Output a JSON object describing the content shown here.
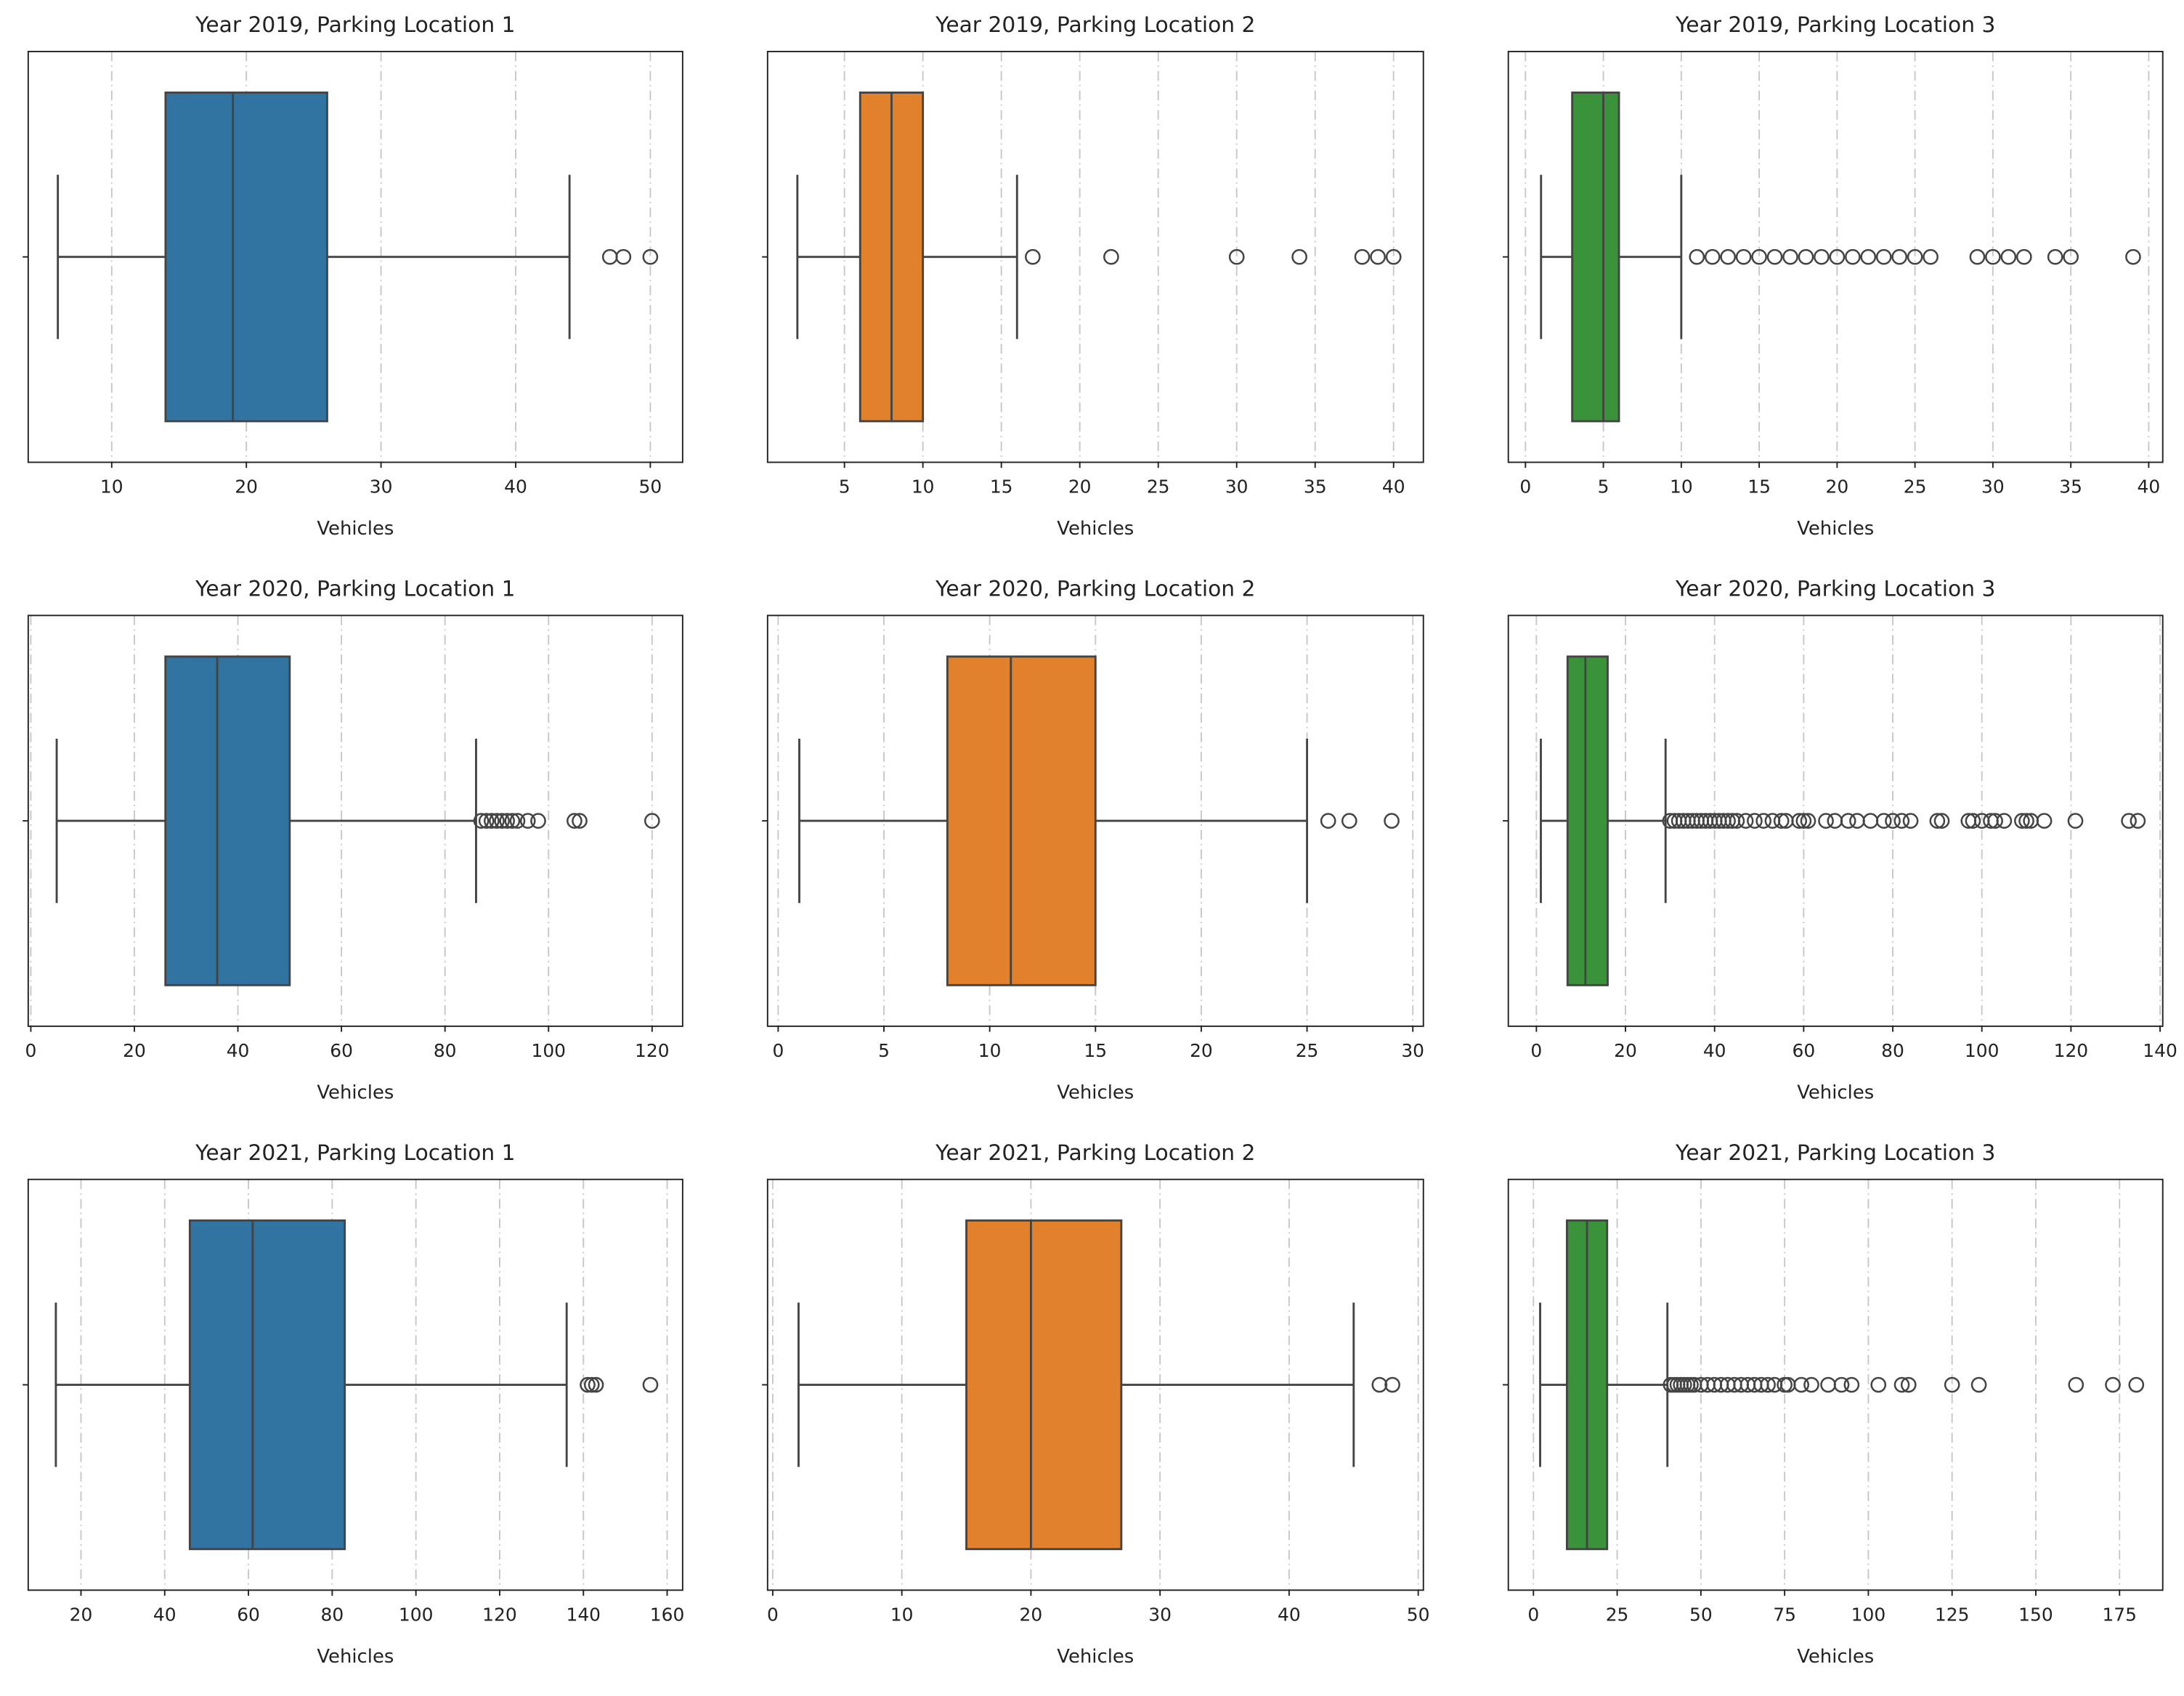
{
  "chart_data": [
    {
      "type": "box",
      "title": "Year 2019, Parking Location 1",
      "xlabel": "Vehicles",
      "color": "#3274a1",
      "grid": true,
      "whislo": 6,
      "q1": 14,
      "median": 19,
      "q3": 26,
      "whishi": 44,
      "fliers": [
        47,
        48,
        50
      ],
      "xlim": [
        3.8,
        52.4
      ],
      "xticks": [
        10,
        20,
        30,
        40,
        50
      ]
    },
    {
      "type": "box",
      "title": "Year 2019, Parking Location 2",
      "xlabel": "Vehicles",
      "color": "#e1812c",
      "grid": true,
      "whislo": 2,
      "q1": 6,
      "median": 8,
      "q3": 10,
      "whishi": 16,
      "fliers": [
        17,
        22,
        30,
        34,
        38,
        39,
        40
      ],
      "xlim": [
        0.1,
        41.9
      ],
      "xticks": [
        5,
        10,
        15,
        20,
        25,
        30,
        35,
        40
      ]
    },
    {
      "type": "box",
      "title": "Year 2019, Parking Location 3",
      "xlabel": "Vehicles",
      "color": "#3a923a",
      "grid": true,
      "whislo": 1,
      "q1": 3,
      "median": 5,
      "q3": 6,
      "whishi": 10,
      "fliers": [
        11,
        12,
        13,
        14,
        15,
        16,
        17,
        18,
        19,
        20,
        21,
        22,
        23,
        24,
        25,
        26,
        29,
        30,
        31,
        32,
        34,
        35,
        39
      ],
      "xlim": [
        -1.1,
        40.9
      ],
      "xticks": [
        0,
        5,
        10,
        15,
        20,
        25,
        30,
        35,
        40
      ]
    },
    {
      "type": "box",
      "title": "Year 2020, Parking Location 1",
      "xlabel": "Vehicles",
      "color": "#3274a1",
      "grid": true,
      "whislo": 5,
      "q1": 26,
      "median": 36,
      "q3": 50,
      "whishi": 86,
      "fliers": [
        87,
        88,
        89,
        90,
        91,
        92,
        93,
        94,
        96,
        98,
        105,
        106,
        120
      ],
      "xlim": [
        -0.5,
        125.9
      ],
      "xticks": [
        0,
        20,
        40,
        60,
        80,
        100,
        120
      ]
    },
    {
      "type": "box",
      "title": "Year 2020, Parking Location 2",
      "xlabel": "Vehicles",
      "color": "#e1812c",
      "grid": true,
      "whislo": 1,
      "q1": 8,
      "median": 11,
      "q3": 15,
      "whishi": 25,
      "fliers": [
        26,
        27,
        29
      ],
      "xlim": [
        -0.5,
        30.5
      ],
      "xticks": [
        0,
        5,
        10,
        15,
        20,
        25,
        30
      ]
    },
    {
      "type": "box",
      "title": "Year 2020, Parking Location 3",
      "xlabel": "Vehicles",
      "color": "#3a923a",
      "grid": true,
      "whislo": 1,
      "q1": 7,
      "median": 11,
      "q3": 16,
      "whishi": 29,
      "fliers": [
        30,
        31,
        32,
        33,
        34,
        35,
        36,
        37,
        38,
        39,
        40,
        41,
        42,
        43,
        44,
        45,
        47,
        49,
        51,
        53,
        55,
        56,
        59,
        60,
        61,
        65,
        67,
        70,
        72,
        75,
        78,
        80,
        82,
        84,
        90,
        91,
        97,
        98,
        100,
        102,
        103,
        105,
        109,
        110,
        111,
        114,
        121,
        133,
        135
      ],
      "xlim": [
        -6.3,
        140.6
      ],
      "xticks": [
        0,
        20,
        40,
        60,
        80,
        100,
        120,
        140
      ]
    },
    {
      "type": "box",
      "title": "Year 2021, Parking Location 1",
      "xlabel": "Vehicles",
      "color": "#3274a1",
      "grid": true,
      "whislo": 14,
      "q1": 46,
      "median": 61,
      "q3": 83,
      "whishi": 136,
      "fliers": [
        141,
        142,
        143,
        156
      ],
      "xlim": [
        7.4,
        163.7
      ],
      "xticks": [
        20,
        40,
        60,
        80,
        100,
        120,
        140,
        160
      ]
    },
    {
      "type": "box",
      "title": "Year 2021, Parking Location 2",
      "xlabel": "Vehicles",
      "color": "#e1812c",
      "grid": true,
      "whislo": 2,
      "q1": 15,
      "median": 20,
      "q3": 27,
      "whishi": 45,
      "fliers": [
        47,
        48
      ],
      "xlim": [
        -0.4,
        50.4
      ],
      "xticks": [
        0,
        10,
        20,
        30,
        40,
        50
      ]
    },
    {
      "type": "box",
      "title": "Year 2021, Parking Location 3",
      "xlabel": "Vehicles",
      "color": "#3a923a",
      "grid": true,
      "whislo": 2,
      "q1": 10,
      "median": 16,
      "q3": 22,
      "whishi": 40,
      "fliers": [
        41,
        42,
        43,
        44,
        45,
        46,
        47,
        48,
        50,
        52,
        54,
        56,
        58,
        60,
        62,
        64,
        66,
        68,
        70,
        72,
        75,
        76,
        80,
        83,
        88,
        92,
        95,
        103,
        110,
        112,
        125,
        133,
        162,
        173,
        180
      ],
      "xlim": [
        -7.5,
        187.9
      ],
      "xticks": [
        0,
        25,
        50,
        75,
        100,
        125,
        150,
        175
      ]
    }
  ]
}
